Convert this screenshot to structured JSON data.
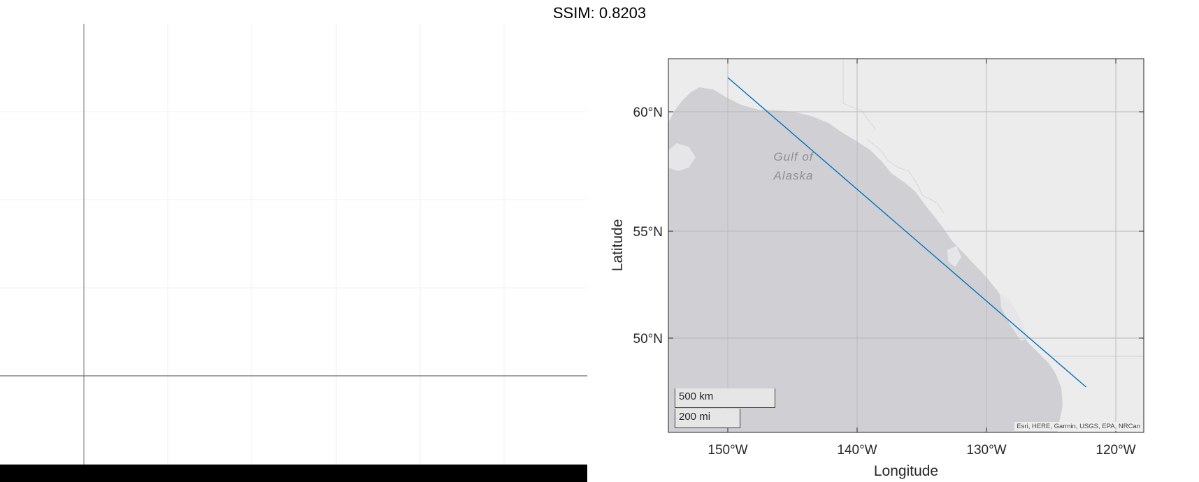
{
  "figure": {
    "title": "SSIM: 0.8203"
  },
  "map": {
    "xlabel": "Longitude",
    "ylabel": "Latitude",
    "lon_ticks": [
      "150°W",
      "140°W",
      "130°W",
      "120°W"
    ],
    "lat_ticks": [
      "60°N",
      "55°N",
      "50°N"
    ],
    "place_label_line1": "Gulf of",
    "place_label_line2": "Alaska",
    "scalebar_km": "500 km",
    "scalebar_mi": "200 mi",
    "attribution": "Esri, HERE, Garmin, USGS, EPA, NRCan",
    "line_color": "#0072BD",
    "ocean_color": "#d0d0d4",
    "land_color": "#ececec"
  },
  "chart_data": {
    "type": "line",
    "title": "",
    "xlabel": "Longitude",
    "ylabel": "Latitude",
    "xlim": [
      -154.5,
      -118.5
    ],
    "ylim": [
      46,
      62
    ],
    "series": [
      {
        "x": [
          -150.0,
          -122.3
        ],
        "y": [
          61.3,
          47.5
        ],
        "color": "#0072BD"
      }
    ],
    "grid": true
  }
}
